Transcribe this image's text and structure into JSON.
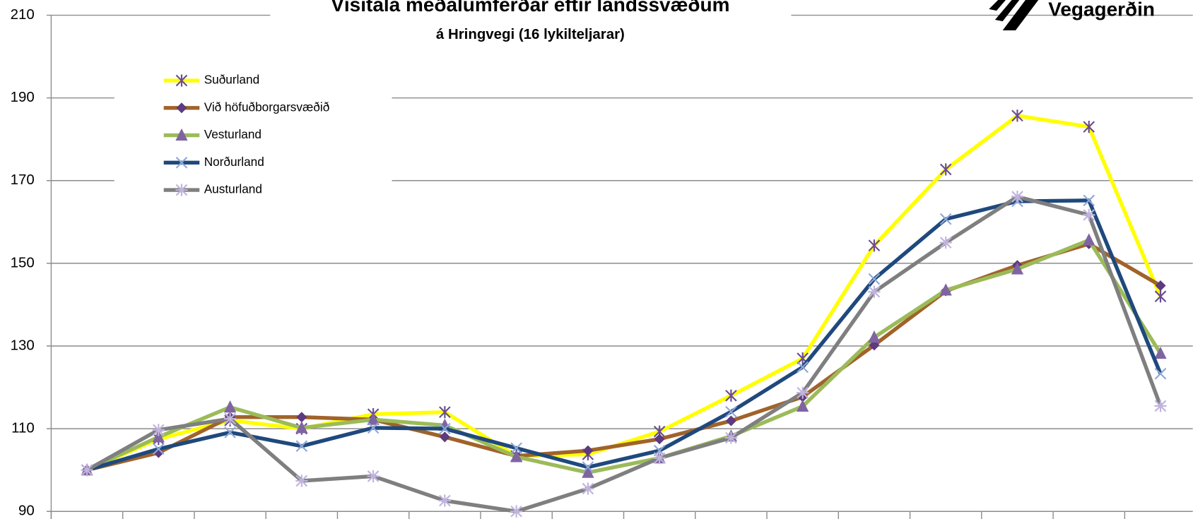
{
  "chart_data": {
    "type": "line",
    "title": "Vísitala meðalumferðar eftir landssvæðum",
    "subtitle": "á Hringvegi (16 lykilteljarar)",
    "logo": "Vegagerðin",
    "categories": [
      null,
      null,
      null,
      null,
      null,
      null,
      null,
      null,
      null,
      null,
      null,
      null,
      null,
      null,
      null,
      null
    ],
    "ylim": [
      90,
      210
    ],
    "yticks": [
      90,
      110,
      130,
      150,
      170,
      190,
      210
    ],
    "grid": true,
    "legend": "top-left",
    "series": [
      {
        "name": "Suðurland",
        "color": "#ffff00",
        "marker": "asterisk",
        "marker_color": "#6a4c93",
        "values": [
          100,
          107.5,
          112,
          110,
          113.5,
          114,
          103.4,
          103.8,
          109.3,
          118,
          127,
          154.3,
          172.7,
          185.7,
          183,
          142
        ]
      },
      {
        "name": "Við höfuðborgarsvæðið",
        "color": "#a0632b",
        "marker": "diamond",
        "marker_color": "#5e3a7e",
        "values": [
          100,
          104.2,
          112.8,
          112.8,
          112.2,
          108,
          103.4,
          104.7,
          107.5,
          111.9,
          117.7,
          130.2,
          143.3,
          149.5,
          154.7,
          144.6
        ]
      },
      {
        "name": "Vesturland",
        "color": "#9bbb59",
        "marker": "triangle",
        "marker_color": "#8064a2",
        "values": [
          100,
          108,
          115.2,
          110.2,
          112.2,
          110.8,
          103.2,
          99.4,
          102.9,
          108.2,
          115.4,
          132.1,
          143.5,
          148.6,
          155.6,
          128.2
        ]
      },
      {
        "name": "Norðurland",
        "color": "#1f497d",
        "marker": "x",
        "marker_color": "#8fa8d8",
        "values": [
          100,
          105.1,
          109.1,
          105.8,
          110.2,
          110,
          105.3,
          100.7,
          104.7,
          114.1,
          124.9,
          146.2,
          160.7,
          165,
          165.2,
          123.3
        ]
      },
      {
        "name": "Austurland",
        "color": "#7f7f7f",
        "marker": "star",
        "marker_color": "#c0b4dc",
        "values": [
          100,
          109.7,
          112.4,
          97.4,
          98.5,
          92.6,
          90,
          95.5,
          102.9,
          107.8,
          118.7,
          143.1,
          155,
          166.1,
          161.7,
          115.5
        ]
      }
    ]
  }
}
